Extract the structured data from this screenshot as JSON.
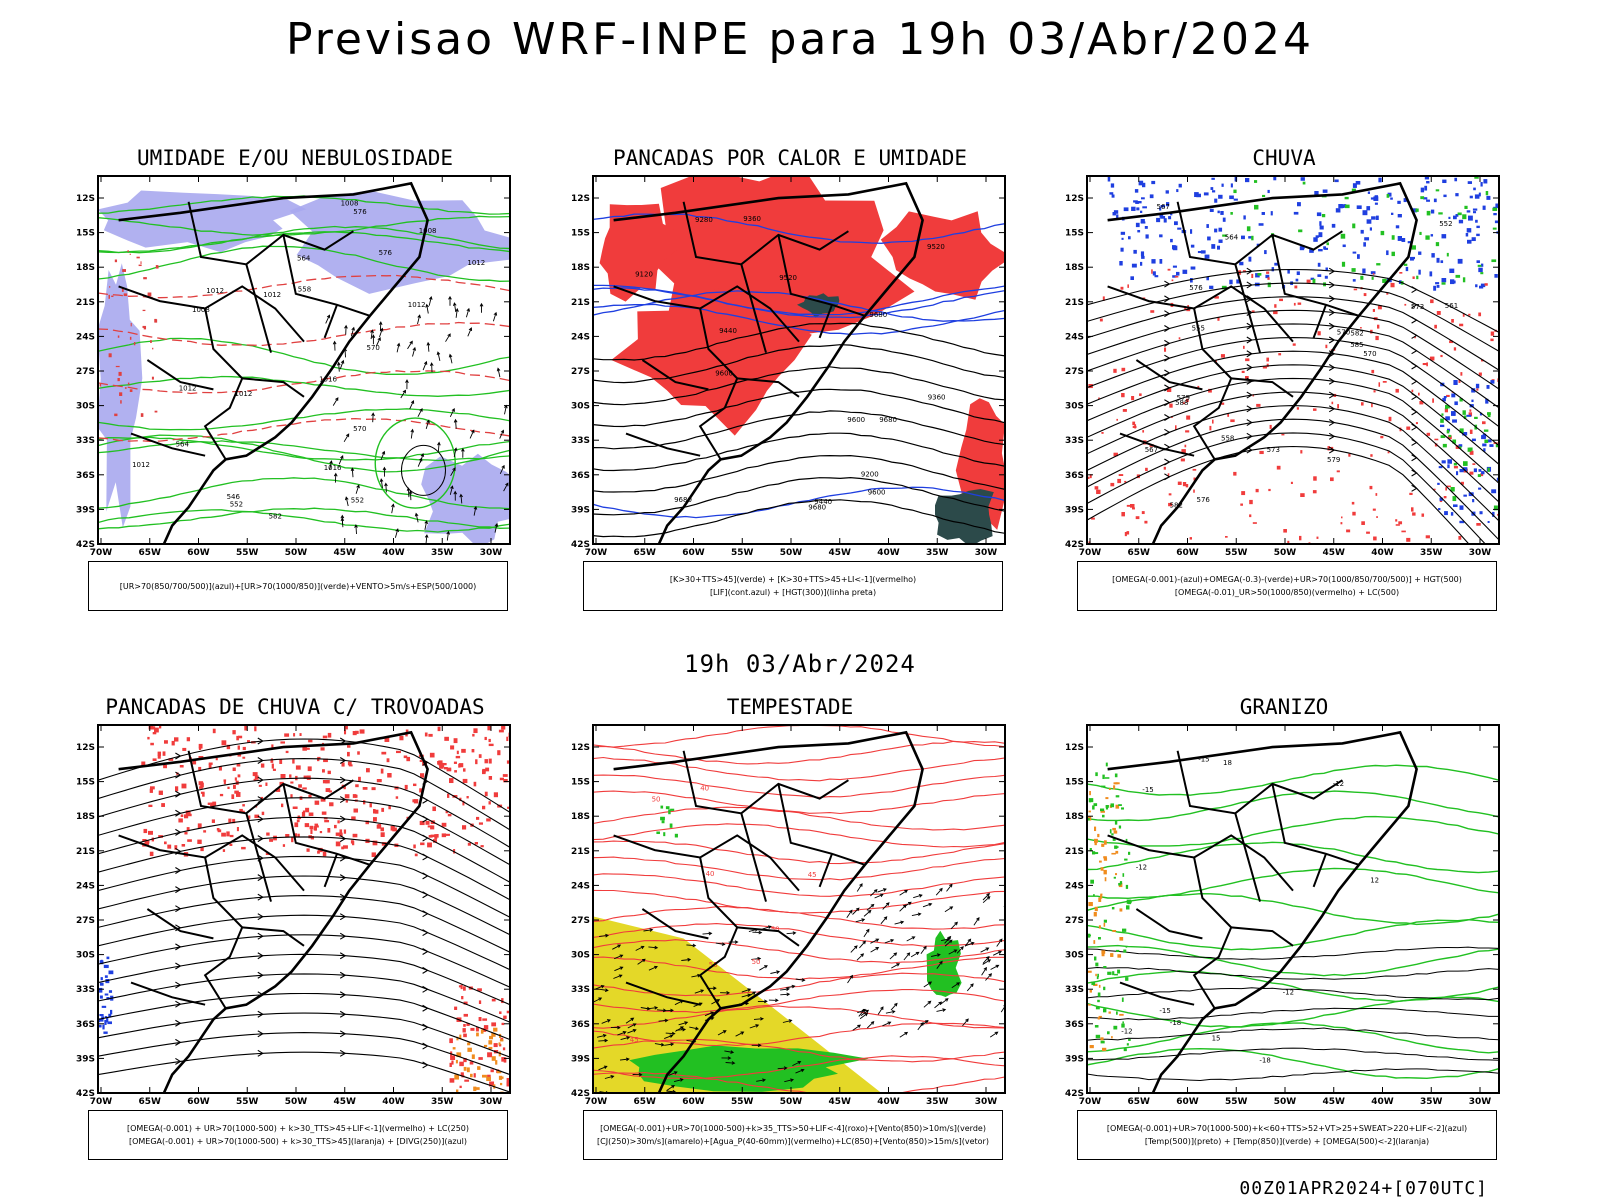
{
  "main_title": "Previsao WRF-INPE  para 19h 03/Abr/2024",
  "mid_title": "19h 03/Abr/2024",
  "footer": "00Z01APR2024+[070UTC]",
  "lat_labels": [
    "12S",
    "15S",
    "18S",
    "21S",
    "24S",
    "27S",
    "30S",
    "33S",
    "36S",
    "39S",
    "42S"
  ],
  "lon_labels": [
    "70W",
    "65W",
    "60W",
    "55W",
    "50W",
    "45W",
    "40W",
    "35W",
    "30W"
  ],
  "panels": [
    {
      "title": "UMIDADE E/OU NEBULOSIDADE",
      "legend": [
        "[UR>70(850/700/500)](azul)+[UR>70(1000/850)](verde)+VENTO>5m/s+ESP(500/1000)"
      ],
      "labels": [
        "1008",
        "1012",
        "1012",
        "1008",
        "1012",
        "1016",
        "1012",
        "1012",
        "1012",
        "1016",
        "1012",
        "1008",
        "576",
        "570",
        "564",
        "558",
        "552",
        "546",
        "576",
        "582",
        "570",
        "564",
        "552"
      ]
    },
    {
      "title": "PANCADAS POR CALOR E UMIDADE",
      "legend": [
        "[K>30+TTS>45](verde) + [K>30+TTS>45+LI<-1](vermelho)",
        "[LIF](cont.azul) + [HGT(300)](linha preta)"
      ],
      "labels": [
        "9680",
        "9680",
        "9680",
        "9600",
        "9680",
        "9600",
        "9520",
        "9600",
        "9440",
        "9520",
        "9440",
        "9360",
        "9280",
        "9200",
        "9120",
        "9360"
      ]
    },
    {
      "title": "CHUVA",
      "legend": [
        "[OMEGA(-0.001)-(azul)+OMEGA(-0.3)-(verde)+UR>70(1000/850/700/500)] + HGT(500)",
        "[OMEGA(-0.01)_UR>50(1000/850)(vermelho) + LC(500)"
      ],
      "labels": [
        "588",
        "585",
        "582",
        "579",
        "576",
        "573",
        "570",
        "567",
        "564",
        "561",
        "558",
        "555",
        "552",
        "582",
        "579",
        "576",
        "573",
        "570",
        "567"
      ]
    },
    {
      "title": "PANCADAS DE CHUVA C/ TROVOADAS",
      "legend": [
        "[OMEGA(-0.001) + UR>70(1000-500) + k>30_TTS>45+LIF<-1](vermelho) + LC(250)",
        "[OMEGA(-0.001) + UR>70(1000-500) + k>30_TTS>45](laranja) + [DIVG(250)](azul)"
      ],
      "labels": []
    },
    {
      "title": "TEMPESTADE",
      "legend": [
        "[OMEGA(-0.001)+UR>70(1000-500)+k>35_TTS>50+LIF<-4](roxo)+[Vento(850)>10m/s](verde)",
        "[CJ(250)>30m/s](amarelo)+[Agua_P(40-60mm)](vermelho)+LC(850)+[Vento(850)>15m/s](vetor)"
      ],
      "labels": [
        "50",
        "45",
        "50",
        "40",
        "55",
        "45",
        "50",
        "40"
      ]
    },
    {
      "title": "GRANIZO",
      "legend": [
        "[OMEGA(-0.001)+UR>70(1000-500)+k<60+TTS>52+VT>25+SWEAT>220+LIF<-2](azul)",
        "[Temp(500)](preto) + [Temp(850)](verde) + [OMEGA(500)<-2](laranja)"
      ],
      "labels": [
        "-12",
        "-15",
        "-18",
        "-12",
        "-15",
        "-18",
        "-12",
        "-15",
        "-12",
        "12",
        "15",
        "18"
      ]
    }
  ],
  "colors": {
    "red": "#f03c3c",
    "green": "#22c022",
    "blue": "#1f3fe0",
    "lavender": "#a8a8ee",
    "orange": "#f08c1e",
    "yellow": "#e4d828",
    "darkgreen": "#2c4a4a"
  }
}
